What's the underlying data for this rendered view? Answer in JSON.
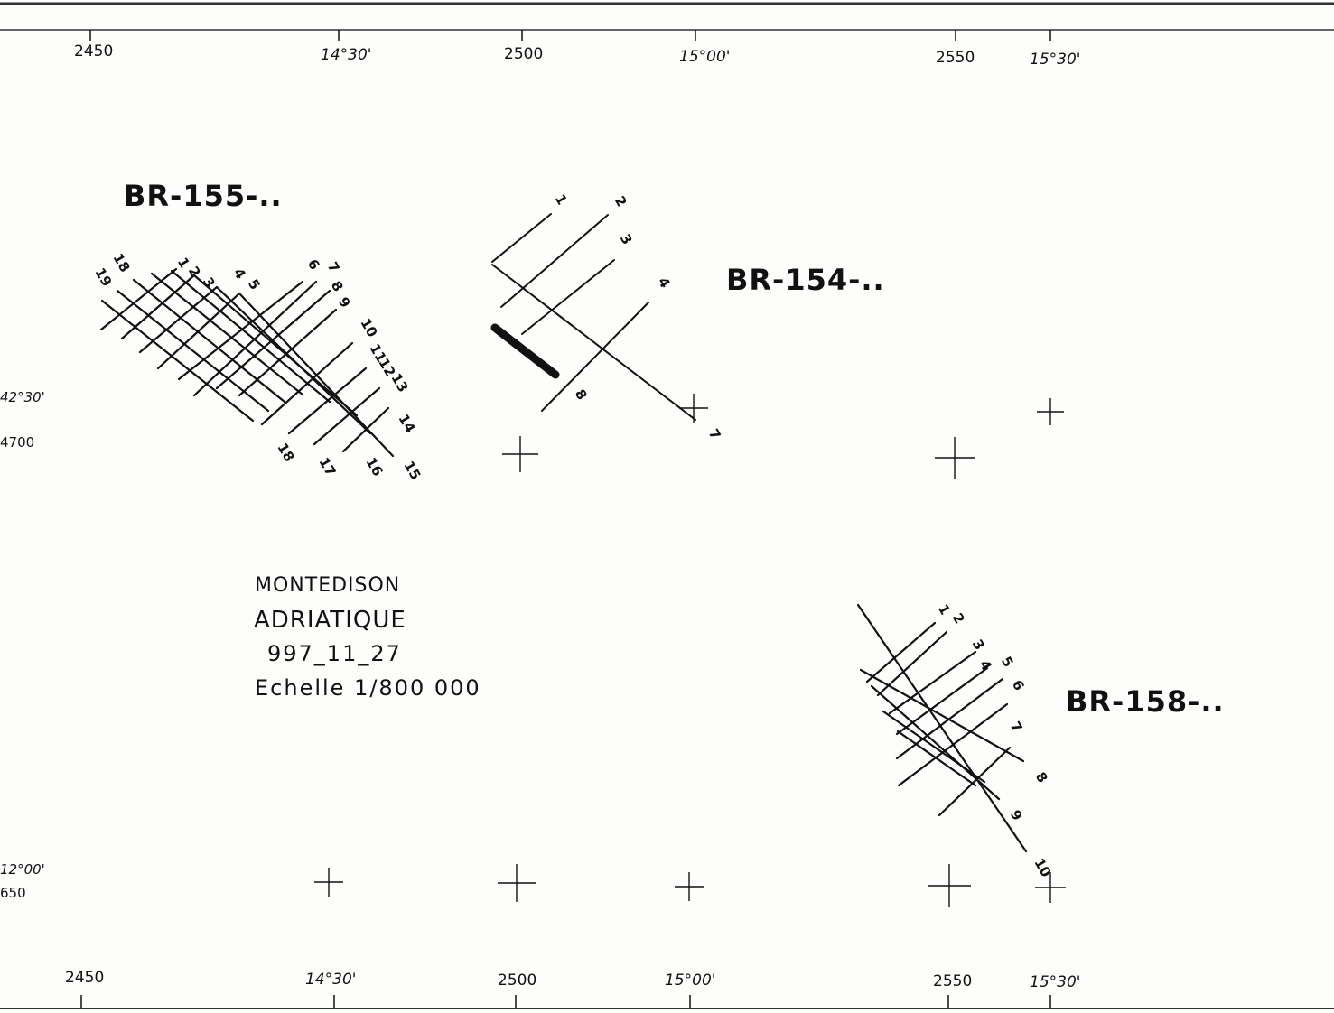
{
  "title_block": {
    "line1": "MONTEDISON",
    "line2": "ADRIATIQUE",
    "line3": "997_11_27",
    "line4": "Echelle  1/800 000"
  },
  "grid": {
    "top_numbers": [
      "2450",
      "2500",
      "2550"
    ],
    "top_degrees": [
      "14°30'",
      "15°00'",
      "15°30'"
    ],
    "bottom_numbers": [
      "2450",
      "2500",
      "2550"
    ],
    "bottom_degrees": [
      "14°30'",
      "15°00'",
      "15°30'"
    ],
    "left_lat_1": "42°30'",
    "left_num_1": "4700",
    "left_lat_2": "12°00'",
    "left_num_2": "650"
  },
  "blocks": {
    "br155": "BR-155-..",
    "br154": "BR-154-..",
    "br158": "BR-158-.."
  },
  "line_numbers": {
    "br155": [
      "18",
      "19",
      "1",
      "2",
      "3",
      "4",
      "5",
      "6",
      "7",
      "8",
      "9",
      "10",
      "11",
      "12",
      "13",
      "14",
      "15",
      "16",
      "17",
      "18",
      "19"
    ],
    "br154": [
      "1",
      "2",
      "3",
      "4",
      "8",
      "7"
    ],
    "br158": [
      "1",
      "2",
      "3",
      "4",
      "5",
      "6",
      "7",
      "8",
      "9",
      "10"
    ]
  },
  "colors": {
    "ink": "#111111",
    "paper": "#fdfdfc",
    "frame": "#333333"
  }
}
